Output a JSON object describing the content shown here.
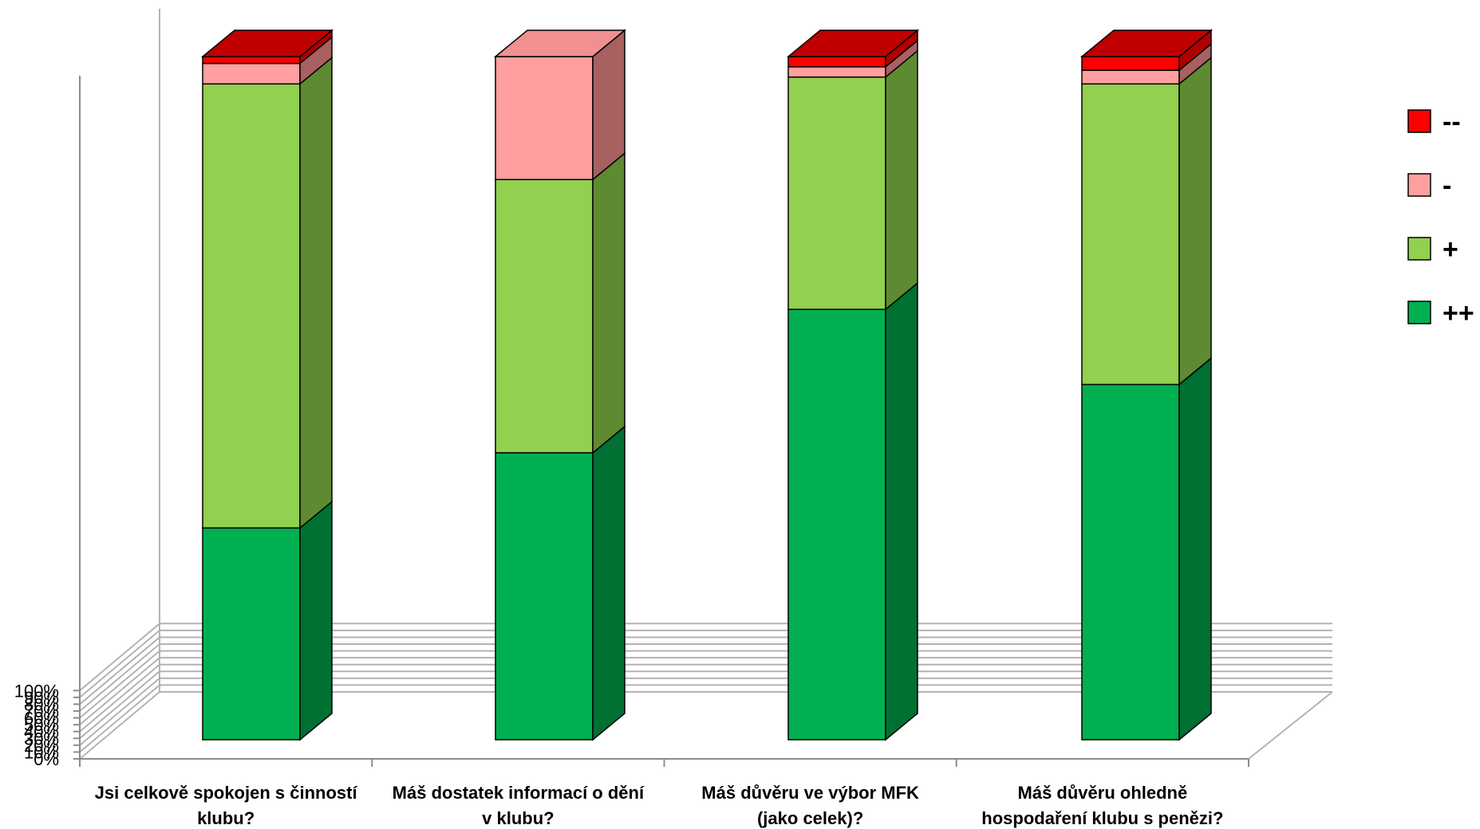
{
  "chart_data": {
    "type": "bar",
    "stacked": true,
    "percent": true,
    "three_d": true,
    "categories": [
      [
        "Jsi celkově spokojen s činností",
        "klubu?"
      ],
      [
        "Máš dostatek informací o dění",
        "v klubu?"
      ],
      [
        "Máš důvěru ve výbor MFK",
        "(jako celek)?"
      ],
      [
        "Máš důvěru ohledně",
        "hospodaření klubu s penězi?"
      ]
    ],
    "series": [
      {
        "name": "++",
        "values": [
          31,
          42,
          63,
          52
        ],
        "color": "#00b050",
        "side": "#007033",
        "top": "#00a04a"
      },
      {
        "name": "+",
        "values": [
          65,
          40,
          34,
          44
        ],
        "color": "#92d050",
        "side": "#5e8a32",
        "top": "#80c040"
      },
      {
        "name": "-",
        "values": [
          3,
          18,
          1.5,
          2
        ],
        "color": "#ff9f9f",
        "side": "#a86060",
        "top": "#f09090"
      },
      {
        "name": "--",
        "values": [
          1,
          0,
          1.5,
          2
        ],
        "color": "#ff0000",
        "side": "#b00000",
        "top": "#c00000"
      }
    ],
    "yticks": [
      "0%",
      "10%",
      "20%",
      "30%",
      "40%",
      "50%",
      "60%",
      "70%",
      "80%",
      "90%",
      "100%"
    ],
    "ylim": [
      0,
      100
    ],
    "grid": true,
    "legend_position": "right",
    "legend_order": [
      "--",
      "-",
      "+",
      "++"
    ]
  }
}
